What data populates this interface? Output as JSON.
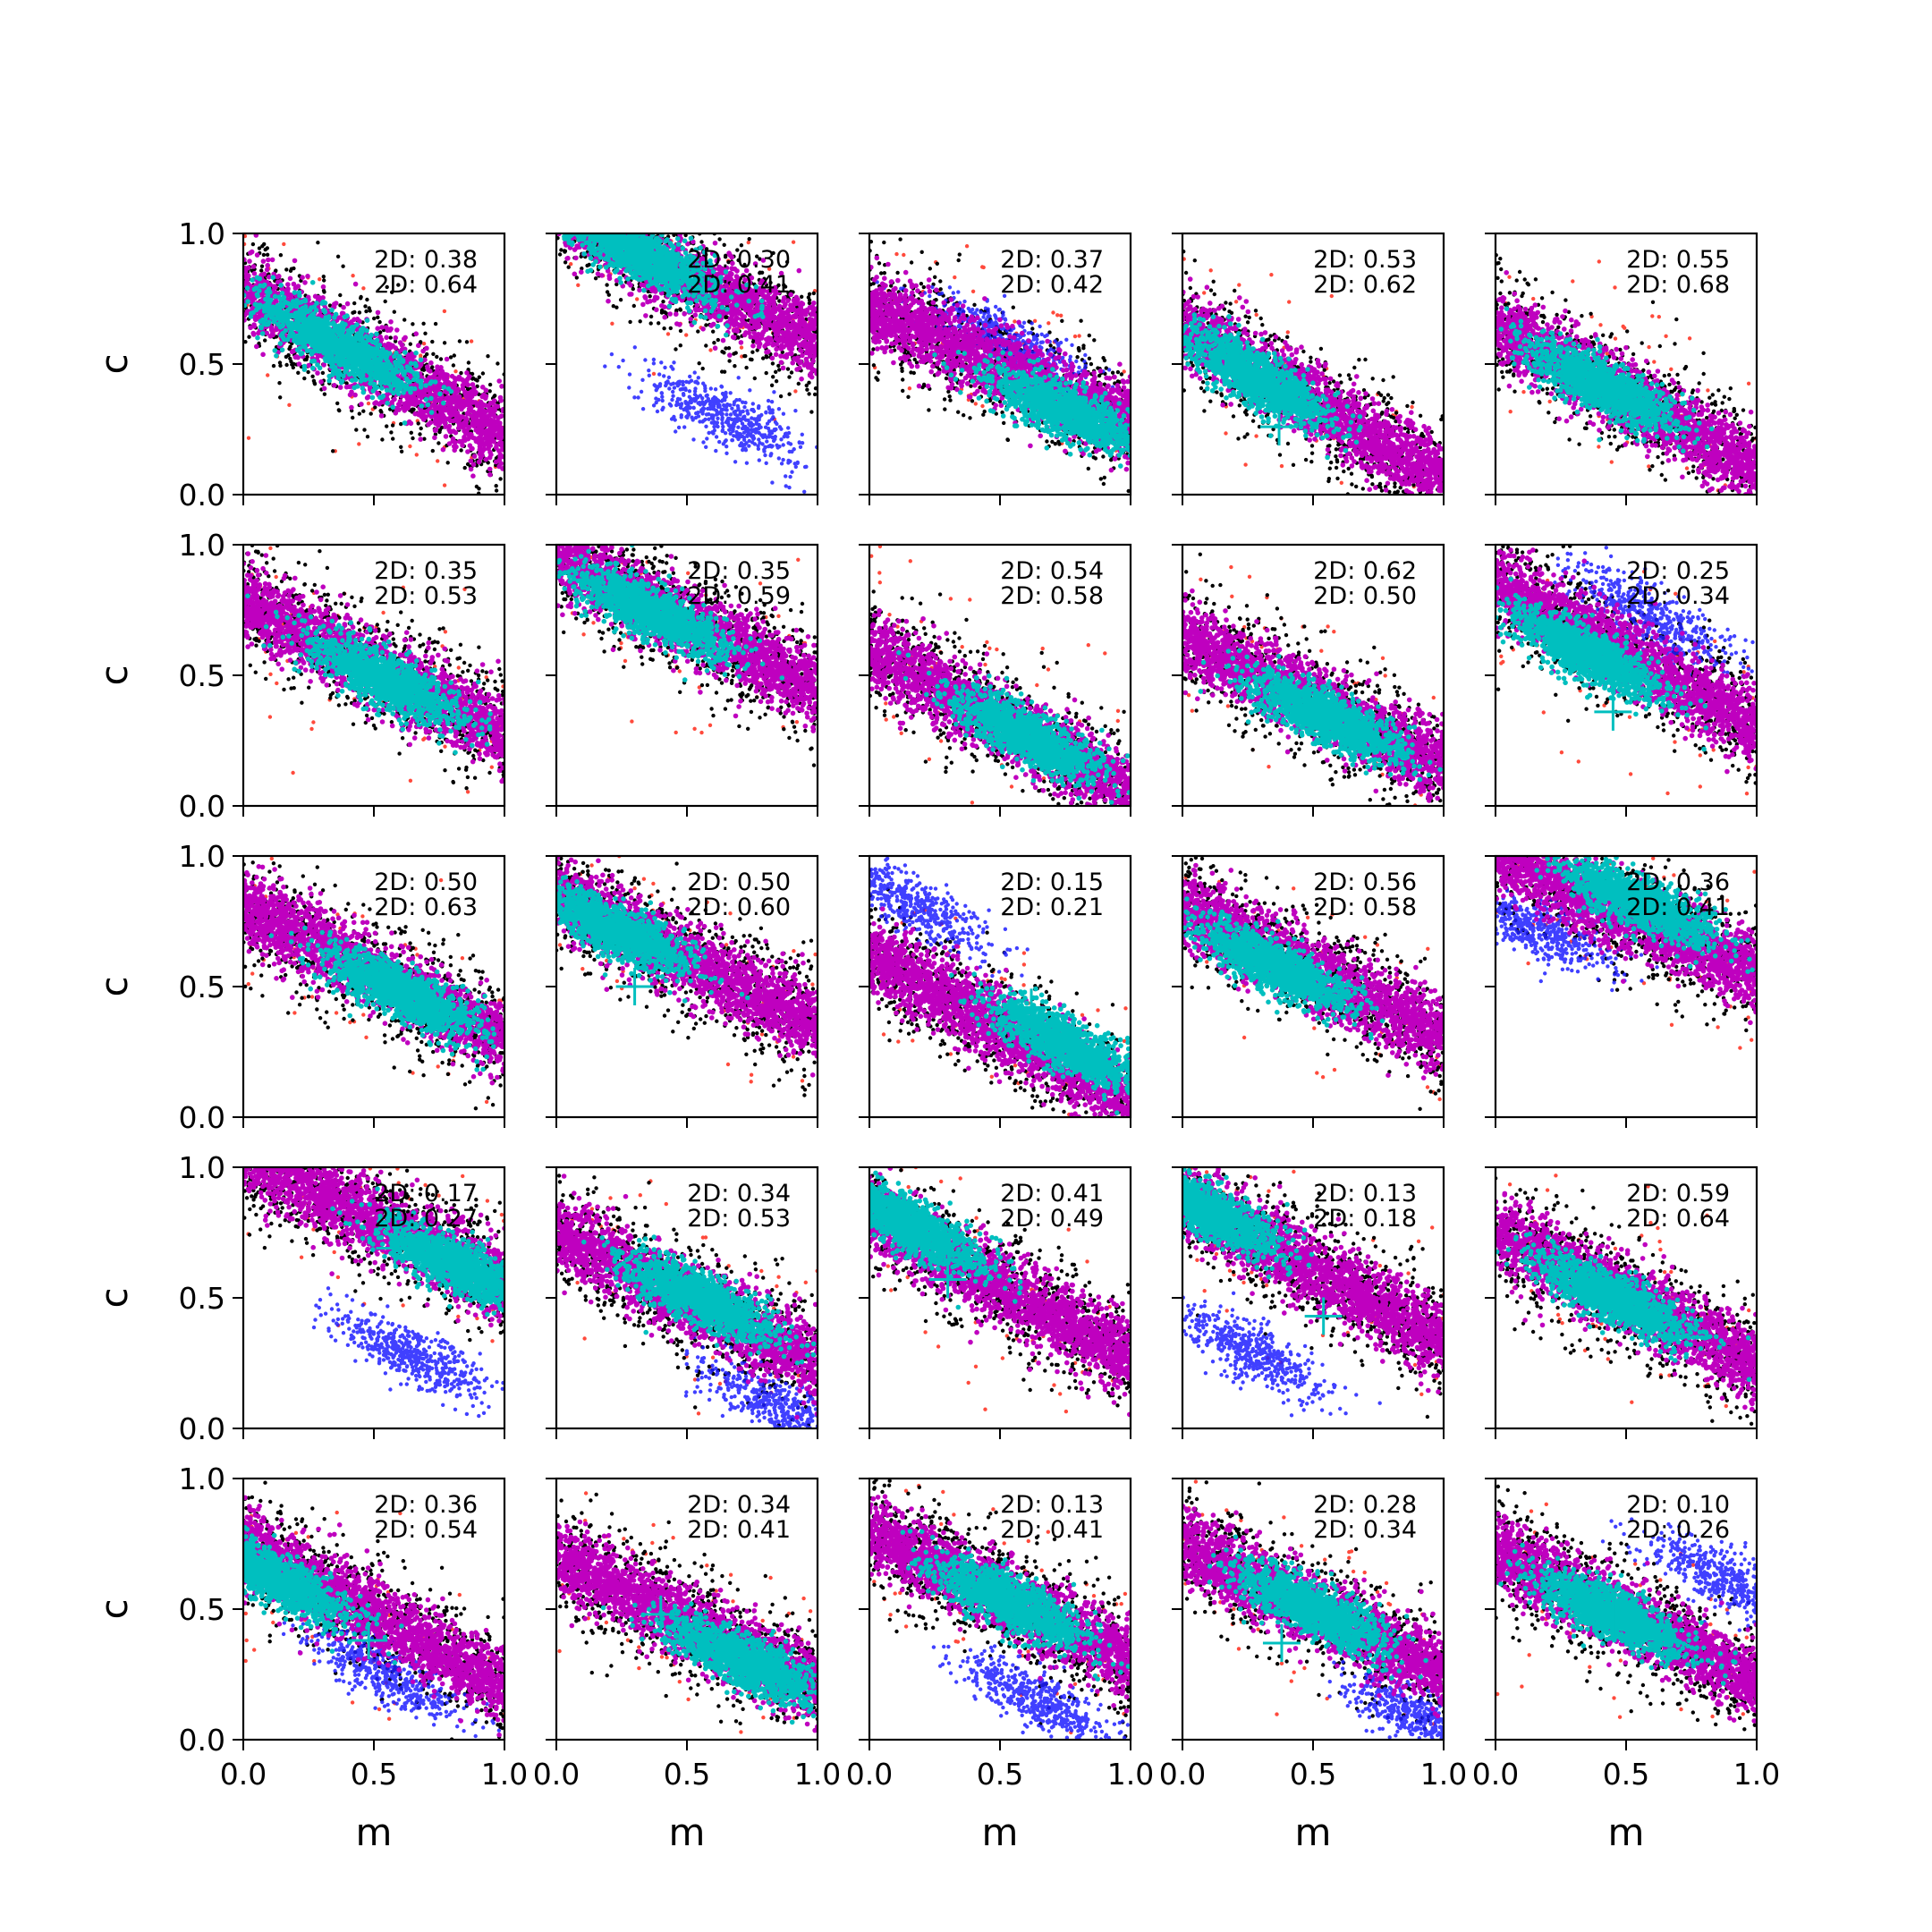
{
  "chart_data": {
    "type": "scatter",
    "layout": {
      "rows": 5,
      "cols": 5
    },
    "xlabel": "m",
    "ylabel": "c",
    "xlim": [
      0.0,
      1.0
    ],
    "ylim": [
      0.0,
      1.0
    ],
    "xticks": [
      "0.0",
      "0.5",
      "1.0"
    ],
    "yticks": [
      "0.0",
      "0.5",
      "1.0"
    ],
    "annotation_prefix": "2D:",
    "series_colors": {
      "outer_black": "#000000",
      "outlier_red": "#ff2a1a",
      "alt_blue": "#1f1fff",
      "mid_magenta": "#bf00bf",
      "core_cyan": "#00bfbf",
      "marker_cross": "#00bfbf"
    },
    "panels": [
      {
        "row": 0,
        "col": 0,
        "text1": "2D: 0.38",
        "text2": "2D: 0.64",
        "slope": -0.55,
        "intercept": 0.78,
        "core_center": [
          0.35,
          0.58
        ],
        "blue": null,
        "cross": null
      },
      {
        "row": 0,
        "col": 1,
        "text1": "2D: 0.30",
        "text2": "2D: 0.41",
        "slope": -0.5,
        "intercept": 1.08,
        "core_center": [
          0.32,
          0.92
        ],
        "blue": {
          "center": [
            0.65,
            0.3
          ]
        },
        "cross": null
      },
      {
        "row": 0,
        "col": 2,
        "text1": "2D: 0.37",
        "text2": "2D: 0.42",
        "slope": -0.45,
        "intercept": 0.72,
        "core_center": [
          0.75,
          0.32
        ],
        "blue": {
          "center": [
            0.5,
            0.6
          ]
        },
        "cross": null
      },
      {
        "row": 0,
        "col": 3,
        "text1": "2D: 0.53",
        "text2": "2D: 0.62",
        "slope": -0.6,
        "intercept": 0.65,
        "core_center": [
          0.28,
          0.45
        ],
        "blue": null,
        "cross": [
          0.37,
          0.26
        ]
      },
      {
        "row": 0,
        "col": 4,
        "text1": "2D: 0.55",
        "text2": "2D: 0.68",
        "slope": -0.55,
        "intercept": 0.65,
        "core_center": [
          0.4,
          0.42
        ],
        "blue": null,
        "cross": null
      },
      {
        "row": 1,
        "col": 0,
        "text1": "2D: 0.35",
        "text2": "2D: 0.53",
        "slope": -0.5,
        "intercept": 0.78,
        "core_center": [
          0.55,
          0.48
        ],
        "blue": null,
        "cross": null
      },
      {
        "row": 1,
        "col": 1,
        "text1": "2D: 0.35",
        "text2": "2D: 0.59",
        "slope": -0.5,
        "intercept": 0.95,
        "core_center": [
          0.35,
          0.75
        ],
        "blue": null,
        "cross": null
      },
      {
        "row": 1,
        "col": 2,
        "text1": "2D: 0.54",
        "text2": "2D: 0.58",
        "slope": -0.55,
        "intercept": 0.6,
        "core_center": [
          0.6,
          0.27
        ],
        "blue": null,
        "cross": null
      },
      {
        "row": 1,
        "col": 3,
        "text1": "2D: 0.62",
        "text2": "2D: 0.50",
        "slope": -0.5,
        "intercept": 0.65,
        "core_center": [
          0.55,
          0.34
        ],
        "blue": null,
        "cross": null
      },
      {
        "row": 1,
        "col": 4,
        "text1": "2D: 0.25",
        "text2": "2D: 0.34",
        "slope": -0.55,
        "intercept": 0.85,
        "core_center": [
          0.35,
          0.58
        ],
        "blue": {
          "center": [
            0.6,
            0.72
          ]
        },
        "cross": [
          0.45,
          0.36
        ]
      },
      {
        "row": 2,
        "col": 0,
        "text1": "2D: 0.50",
        "text2": "2D: 0.63",
        "slope": -0.5,
        "intercept": 0.8,
        "core_center": [
          0.6,
          0.48
        ],
        "blue": null,
        "cross": null
      },
      {
        "row": 2,
        "col": 1,
        "text1": "2D: 0.50",
        "text2": "2D: 0.60",
        "slope": -0.5,
        "intercept": 0.85,
        "core_center": [
          0.22,
          0.72
        ],
        "blue": null,
        "cross": [
          0.3,
          0.5
        ]
      },
      {
        "row": 2,
        "col": 2,
        "text1": "2D: 0.15",
        "text2": "2D: 0.21",
        "slope": -0.55,
        "intercept": 0.62,
        "core_center": [
          0.75,
          0.28
        ],
        "blue": {
          "center": [
            0.15,
            0.82
          ]
        },
        "cross": [
          0.62,
          0.42
        ]
      },
      {
        "row": 2,
        "col": 3,
        "text1": "2D: 0.56",
        "text2": "2D: 0.58",
        "slope": -0.5,
        "intercept": 0.8,
        "core_center": [
          0.35,
          0.58
        ],
        "blue": null,
        "cross": null
      },
      {
        "row": 2,
        "col": 4,
        "text1": "2D: 0.36",
        "text2": "2D: 0.41",
        "slope": -0.45,
        "intercept": 1.0,
        "core_center": [
          0.55,
          0.82
        ],
        "blue": {
          "center": [
            0.15,
            0.72
          ]
        },
        "cross": null
      },
      {
        "row": 3,
        "col": 0,
        "text1": "2D: 0.17",
        "text2": "2D: 0.27",
        "slope": -0.5,
        "intercept": 1.05,
        "core_center": [
          0.82,
          0.62
        ],
        "blue": {
          "center": [
            0.65,
            0.28
          ]
        },
        "cross": [
          0.58,
          0.69
        ]
      },
      {
        "row": 3,
        "col": 1,
        "text1": "2D: 0.34",
        "text2": "2D: 0.53",
        "slope": -0.5,
        "intercept": 0.75,
        "core_center": [
          0.55,
          0.5
        ],
        "blue": {
          "center": [
            0.85,
            0.08
          ]
        },
        "cross": null
      },
      {
        "row": 3,
        "col": 2,
        "text1": "2D: 0.41",
        "text2": "2D: 0.49",
        "slope": -0.55,
        "intercept": 0.82,
        "core_center": [
          0.15,
          0.78
        ],
        "blue": null,
        "cross": [
          0.3,
          0.57
        ]
      },
      {
        "row": 3,
        "col": 3,
        "text1": "2D: 0.13",
        "text2": "2D: 0.18",
        "slope": -0.55,
        "intercept": 0.88,
        "core_center": [
          0.1,
          0.83
        ],
        "blue": {
          "center": [
            0.25,
            0.3
          ]
        },
        "cross": [
          0.54,
          0.43
        ]
      },
      {
        "row": 3,
        "col": 4,
        "text1": "2D: 0.59",
        "text2": "2D: 0.64",
        "slope": -0.5,
        "intercept": 0.75,
        "core_center": [
          0.45,
          0.5
        ],
        "blue": null,
        "cross": null
      },
      {
        "row": 4,
        "col": 0,
        "text1": "2D: 0.36",
        "text2": "2D: 0.54",
        "slope": -0.55,
        "intercept": 0.75,
        "core_center": [
          0.12,
          0.62
        ],
        "blue": {
          "center": [
            0.55,
            0.25
          ]
        },
        "cross": [
          0.48,
          0.38
        ]
      },
      {
        "row": 4,
        "col": 1,
        "text1": "2D: 0.34",
        "text2": "2D: 0.41",
        "slope": -0.5,
        "intercept": 0.7,
        "core_center": [
          0.72,
          0.3
        ],
        "blue": null,
        "cross": [
          0.4,
          0.48
        ]
      },
      {
        "row": 4,
        "col": 2,
        "text1": "2D: 0.13",
        "text2": "2D: 0.41",
        "slope": -0.5,
        "intercept": 0.8,
        "core_center": [
          0.55,
          0.52
        ],
        "blue": {
          "center": [
            0.65,
            0.15
          ]
        },
        "cross": [
          0.62,
          0.5
        ]
      },
      {
        "row": 4,
        "col": 3,
        "text1": "2D: 0.28",
        "text2": "2D: 0.34",
        "slope": -0.5,
        "intercept": 0.75,
        "core_center": [
          0.5,
          0.5
        ],
        "blue": {
          "center": [
            0.92,
            0.08
          ]
        },
        "cross": [
          0.38,
          0.37
        ]
      },
      {
        "row": 4,
        "col": 4,
        "text1": "2D: 0.10",
        "text2": "2D: 0.26",
        "slope": -0.5,
        "intercept": 0.72,
        "core_center": [
          0.45,
          0.48
        ],
        "blue": {
          "center": [
            0.88,
            0.62
          ]
        },
        "cross": [
          0.45,
          0.47
        ]
      }
    ]
  }
}
